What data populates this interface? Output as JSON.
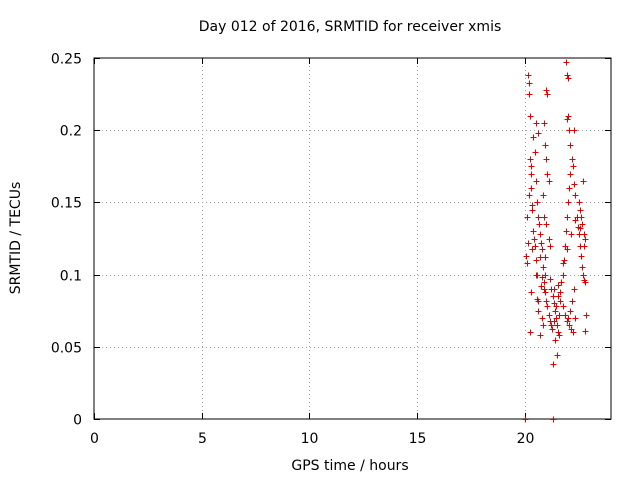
{
  "chart_data": {
    "type": "scatter",
    "title": "Day 012 of 2016, SRMTID for receiver xmis",
    "xlabel": "GPS time / hours",
    "ylabel": "SRMTID / TECUs",
    "xlim": [
      0,
      24
    ],
    "ylim": [
      0,
      0.25
    ],
    "xticks": [
      0,
      5,
      10,
      15,
      20
    ],
    "xtick_labels": [
      "0",
      "5",
      "10",
      "15",
      "20"
    ],
    "yticks": [
      0,
      0.05,
      0.1,
      0.15,
      0.2,
      0.25
    ],
    "ytick_labels": [
      "0",
      "0.05",
      "0.1",
      "0.15",
      "0.2",
      "0.25"
    ],
    "grid": true,
    "marker": "+",
    "series": [
      {
        "name": "SRMTID",
        "color": "#e00000",
        "points": [
          [
            20.0,
            0.0
          ],
          [
            20.02,
            0.0
          ],
          [
            21.3,
            0.0
          ],
          [
            21.33,
            0.0
          ],
          [
            20.05,
            0.113
          ],
          [
            20.1,
            0.108
          ],
          [
            20.15,
            0.238
          ],
          [
            20.18,
            0.233
          ],
          [
            20.2,
            0.225
          ],
          [
            20.25,
            0.21
          ],
          [
            20.22,
            0.18
          ],
          [
            20.28,
            0.175
          ],
          [
            20.3,
            0.16
          ],
          [
            20.32,
            0.148
          ],
          [
            20.35,
            0.145
          ],
          [
            20.4,
            0.13
          ],
          [
            20.42,
            0.125
          ],
          [
            20.45,
            0.12
          ],
          [
            20.5,
            0.11
          ],
          [
            20.52,
            0.1
          ],
          [
            20.55,
            0.083
          ],
          [
            20.6,
            0.082
          ],
          [
            20.62,
            0.075
          ],
          [
            20.3,
            0.088
          ],
          [
            20.25,
            0.06
          ],
          [
            20.7,
            0.058
          ],
          [
            20.8,
            0.07
          ],
          [
            20.85,
            0.065
          ],
          [
            20.9,
            0.09
          ],
          [
            20.95,
            0.1
          ],
          [
            21.0,
            0.228
          ],
          [
            21.05,
            0.225
          ],
          [
            20.9,
            0.205
          ],
          [
            20.95,
            0.19
          ],
          [
            21.0,
            0.18
          ],
          [
            21.05,
            0.17
          ],
          [
            21.1,
            0.165
          ],
          [
            20.85,
            0.155
          ],
          [
            20.9,
            0.14
          ],
          [
            21.0,
            0.135
          ],
          [
            21.1,
            0.125
          ],
          [
            21.15,
            0.12
          ],
          [
            20.7,
            0.112
          ],
          [
            20.8,
            0.098
          ],
          [
            21.2,
            0.09
          ],
          [
            21.3,
            0.085
          ],
          [
            21.35,
            0.08
          ],
          [
            21.4,
            0.075
          ],
          [
            21.45,
            0.07
          ],
          [
            21.5,
            0.065
          ],
          [
            21.55,
            0.06
          ],
          [
            21.6,
            0.058
          ],
          [
            21.3,
            0.038
          ],
          [
            21.5,
            0.044
          ],
          [
            21.4,
            0.055
          ],
          [
            21.6,
            0.072
          ],
          [
            21.65,
            0.088
          ],
          [
            21.7,
            0.095
          ],
          [
            21.75,
            0.1
          ],
          [
            21.8,
            0.11
          ],
          [
            21.85,
            0.12
          ],
          [
            21.9,
            0.13
          ],
          [
            21.95,
            0.14
          ],
          [
            22.0,
            0.15
          ],
          [
            22.05,
            0.16
          ],
          [
            22.1,
            0.17
          ],
          [
            21.95,
            0.208
          ],
          [
            22.0,
            0.21
          ],
          [
            22.05,
            0.2
          ],
          [
            22.1,
            0.19
          ],
          [
            21.9,
            0.247
          ],
          [
            21.95,
            0.238
          ],
          [
            22.0,
            0.236
          ],
          [
            22.2,
            0.18
          ],
          [
            22.25,
            0.175
          ],
          [
            22.3,
            0.163
          ],
          [
            22.35,
            0.155
          ],
          [
            22.4,
            0.14
          ],
          [
            22.45,
            0.133
          ],
          [
            22.5,
            0.128
          ],
          [
            22.55,
            0.12
          ],
          [
            22.6,
            0.113
          ],
          [
            22.65,
            0.105
          ],
          [
            22.7,
            0.1
          ],
          [
            22.75,
            0.096
          ],
          [
            22.8,
            0.095
          ],
          [
            22.85,
            0.072
          ],
          [
            22.8,
            0.061
          ],
          [
            22.2,
            0.082
          ],
          [
            22.1,
            0.075
          ],
          [
            22.0,
            0.07
          ],
          [
            22.3,
            0.09
          ],
          [
            22.5,
            0.15
          ],
          [
            22.55,
            0.145
          ],
          [
            22.6,
            0.14
          ],
          [
            22.65,
            0.135
          ],
          [
            22.7,
            0.165
          ],
          [
            22.75,
            0.12
          ],
          [
            22.8,
            0.125
          ],
          [
            22.3,
            0.2
          ],
          [
            20.1,
            0.14
          ],
          [
            20.2,
            0.155
          ],
          [
            20.3,
            0.17
          ],
          [
            20.4,
            0.195
          ],
          [
            20.45,
            0.185
          ],
          [
            20.5,
            0.165
          ],
          [
            20.55,
            0.15
          ],
          [
            20.6,
            0.14
          ],
          [
            20.65,
            0.135
          ],
          [
            20.7,
            0.128
          ],
          [
            20.75,
            0.122
          ],
          [
            20.8,
            0.118
          ],
          [
            20.85,
            0.105
          ],
          [
            20.9,
            0.095
          ],
          [
            20.95,
            0.088
          ],
          [
            21.0,
            0.082
          ],
          [
            21.05,
            0.078
          ],
          [
            21.1,
            0.072
          ],
          [
            21.15,
            0.068
          ],
          [
            21.2,
            0.065
          ],
          [
            21.25,
            0.062
          ],
          [
            21.35,
            0.068
          ],
          [
            21.45,
            0.078
          ],
          [
            21.55,
            0.085
          ],
          [
            21.65,
            0.082
          ],
          [
            21.75,
            0.078
          ],
          [
            21.85,
            0.072
          ],
          [
            21.95,
            0.068
          ],
          [
            22.05,
            0.065
          ],
          [
            22.15,
            0.062
          ],
          [
            22.25,
            0.06
          ],
          [
            22.35,
            0.07
          ],
          [
            20.15,
            0.122
          ],
          [
            20.35,
            0.118
          ],
          [
            20.55,
            0.1
          ],
          [
            20.75,
            0.092
          ],
          [
            20.95,
            0.112
          ],
          [
            21.15,
            0.097
          ],
          [
            21.35,
            0.09
          ],
          [
            21.55,
            0.093
          ],
          [
            21.75,
            0.108
          ],
          [
            21.95,
            0.118
          ],
          [
            22.15,
            0.128
          ],
          [
            22.35,
            0.138
          ],
          [
            22.55,
            0.132
          ],
          [
            22.75,
            0.128
          ],
          [
            20.5,
            0.205
          ],
          [
            20.6,
            0.198
          ]
        ]
      }
    ]
  }
}
